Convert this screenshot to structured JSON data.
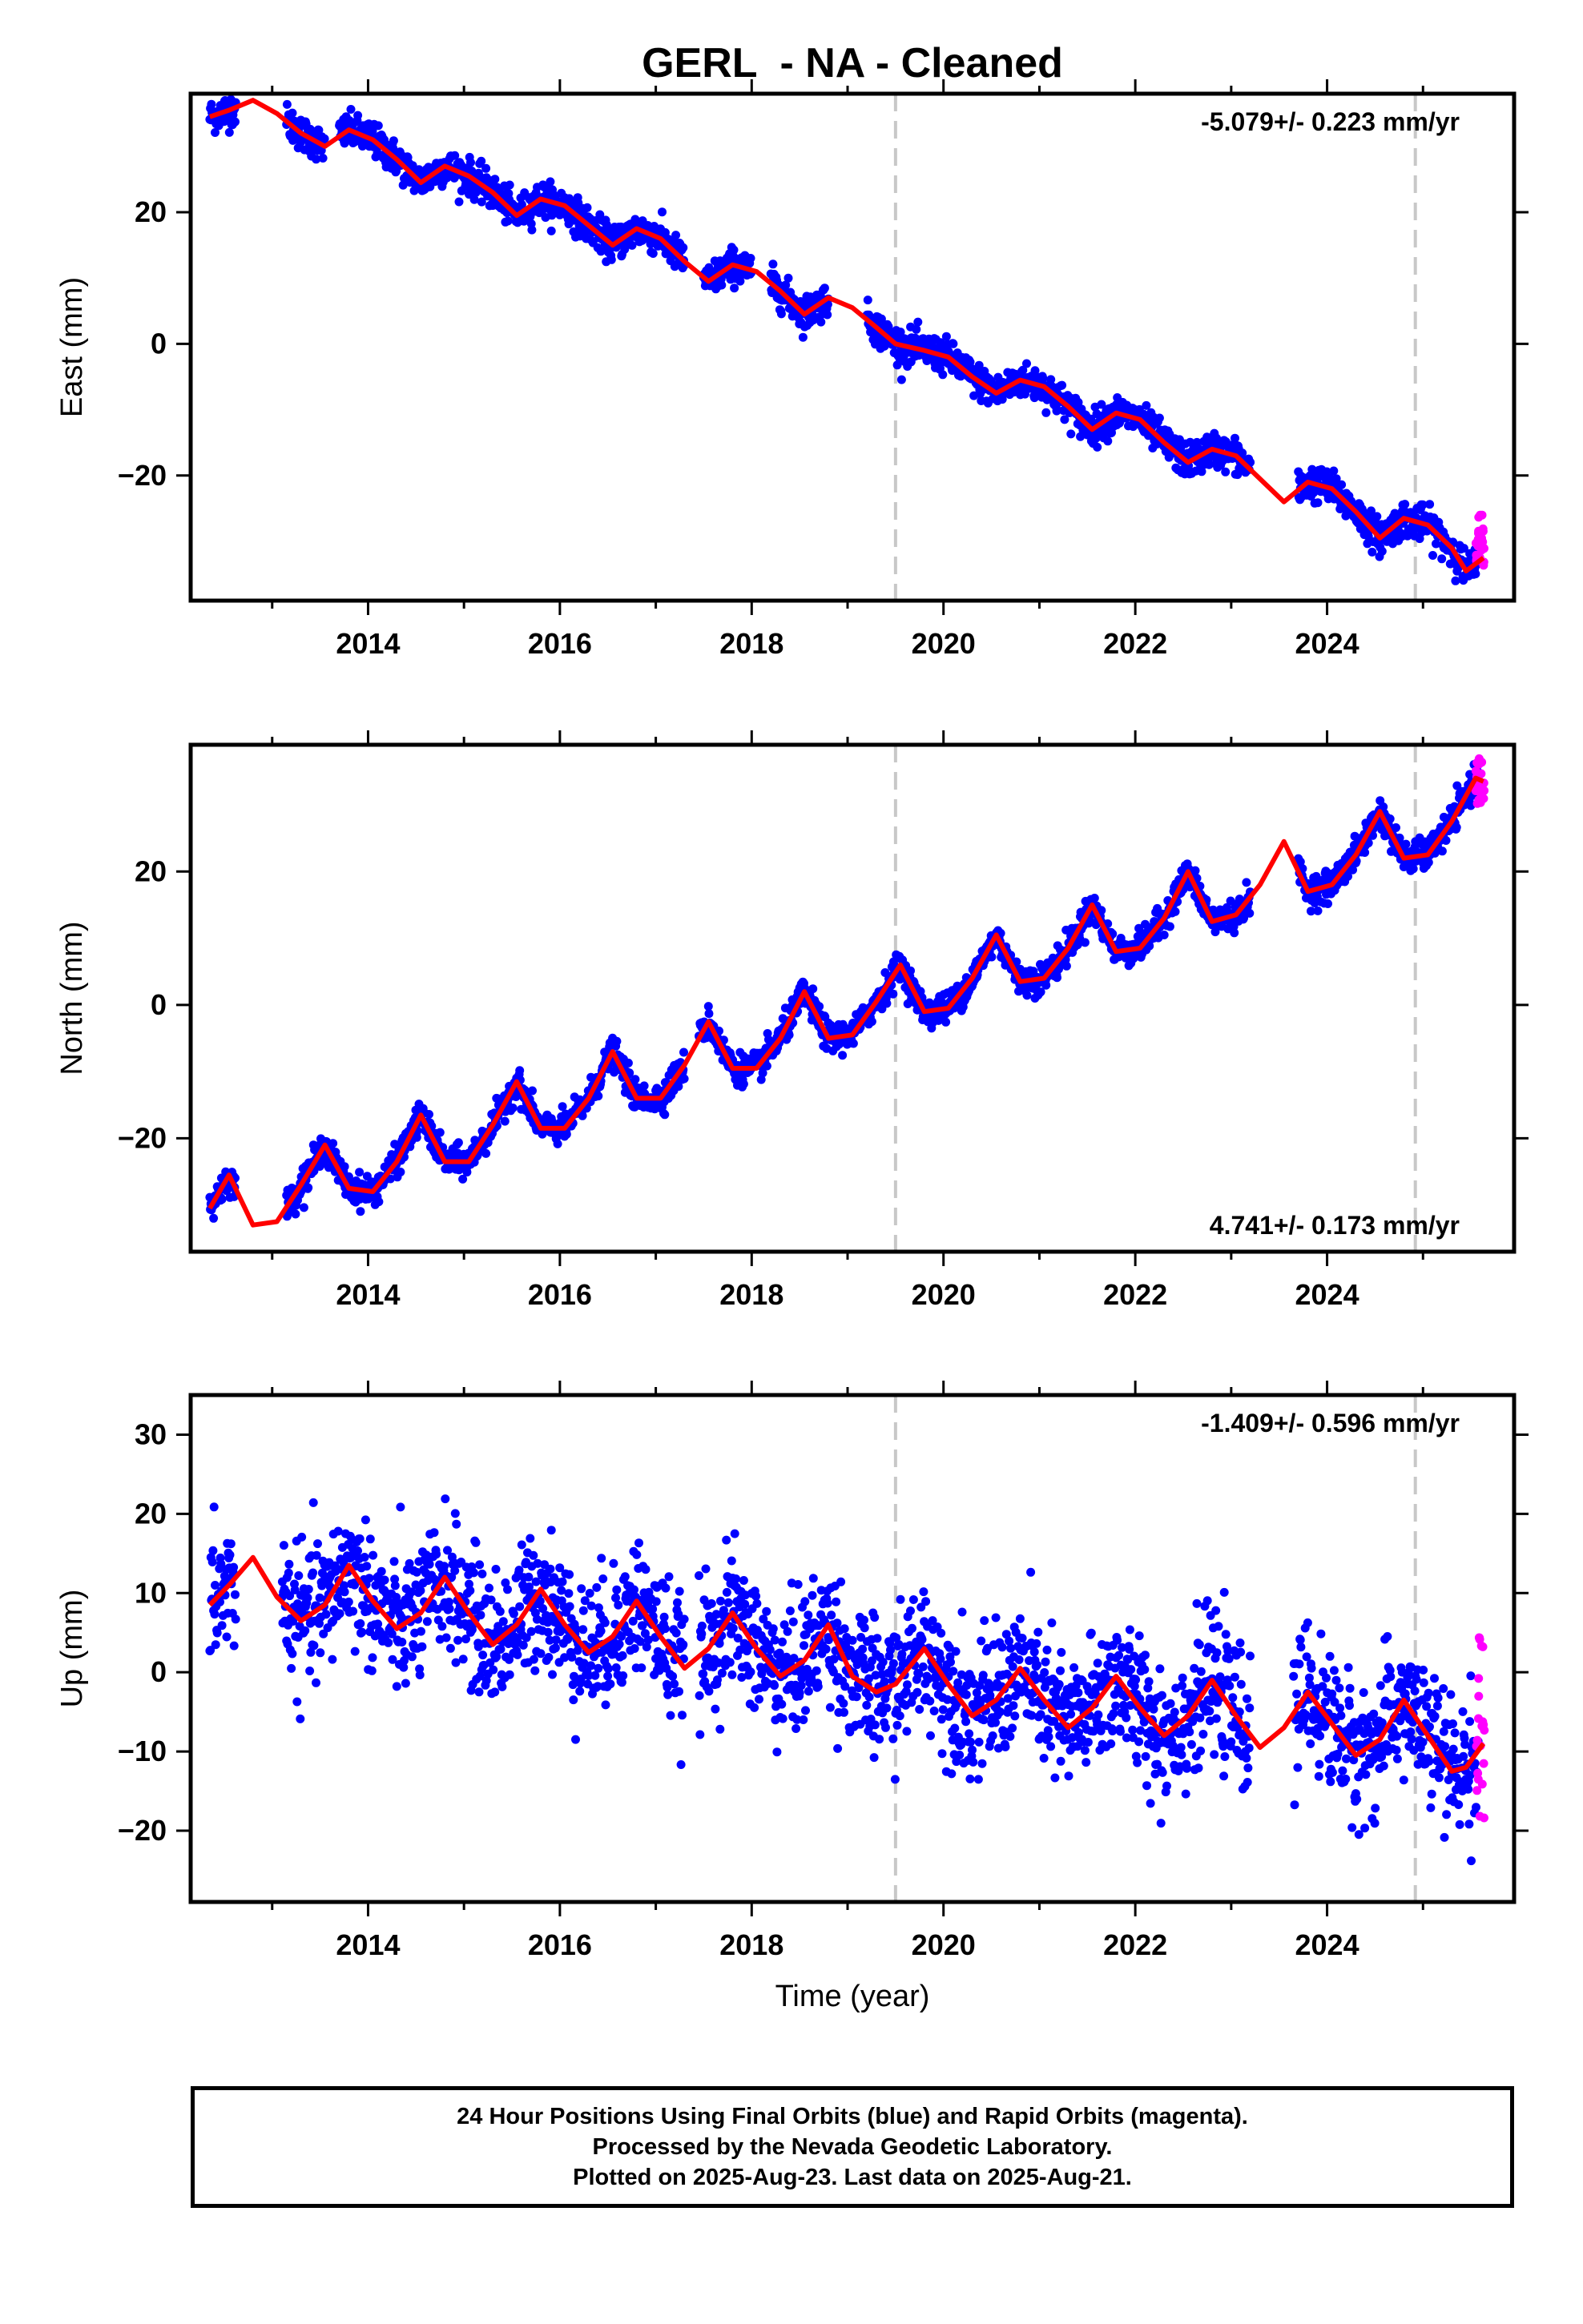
{
  "title": "GERL  - NA - Cleaned",
  "colors": {
    "final_orbits": "#0000ff",
    "rapid_orbits": "#ff00ff",
    "model": "#ff0000",
    "event_lines": "#c8c8c8",
    "frame": "#000000"
  },
  "chart_data": [
    {
      "type": "scatter",
      "panel": "east",
      "ylabel": "East (mm)",
      "xlabel": "",
      "xlim": [
        2012.15,
        2025.95
      ],
      "ylim": [
        -39,
        38
      ],
      "xticks": [
        "2014",
        "2016",
        "2018",
        "2020",
        "2022",
        "2024"
      ],
      "yticks": [
        "20",
        "0",
        "−20"
      ],
      "rate_label": "-5.079+/- 0.223 mm/yr",
      "rate_label_position": "top-right",
      "rate_mm_per_yr": -5.079,
      "rate_sigma": 0.223,
      "event_lines_x": [
        2019.5,
        2024.92
      ],
      "model_points": [
        [
          2012.35,
          34.5
        ],
        [
          2012.55,
          35.5
        ],
        [
          2012.8,
          37.0
        ],
        [
          2013.05,
          35.0
        ],
        [
          2013.3,
          32.0
        ],
        [
          2013.55,
          30.0
        ],
        [
          2013.8,
          32.5
        ],
        [
          2014.05,
          31.0
        ],
        [
          2014.3,
          28.0
        ],
        [
          2014.55,
          24.5
        ],
        [
          2014.8,
          27.0
        ],
        [
          2015.05,
          25.5
        ],
        [
          2015.3,
          23.0
        ],
        [
          2015.55,
          19.5
        ],
        [
          2015.8,
          22.0
        ],
        [
          2016.05,
          21.0
        ],
        [
          2016.3,
          18.0
        ],
        [
          2016.55,
          15.0
        ],
        [
          2016.8,
          17.5
        ],
        [
          2017.05,
          16.0
        ],
        [
          2017.3,
          12.5
        ],
        [
          2017.55,
          9.5
        ],
        [
          2017.8,
          12.0
        ],
        [
          2018.05,
          11.0
        ],
        [
          2018.3,
          8.0
        ],
        [
          2018.55,
          4.5
        ],
        [
          2018.8,
          7.0
        ],
        [
          2019.05,
          5.5
        ],
        [
          2019.3,
          2.5
        ],
        [
          2019.5,
          0.0
        ],
        [
          2019.8,
          -1.0
        ],
        [
          2020.05,
          -2.0
        ],
        [
          2020.3,
          -5.0
        ],
        [
          2020.55,
          -7.5
        ],
        [
          2020.8,
          -5.5
        ],
        [
          2021.05,
          -6.5
        ],
        [
          2021.3,
          -9.5
        ],
        [
          2021.55,
          -13.0
        ],
        [
          2021.8,
          -10.5
        ],
        [
          2022.05,
          -11.5
        ],
        [
          2022.3,
          -15.0
        ],
        [
          2022.55,
          -18.0
        ],
        [
          2022.8,
          -16.0
        ],
        [
          2023.05,
          -17.0
        ],
        [
          2023.3,
          -20.5
        ],
        [
          2023.55,
          -24.0
        ],
        [
          2023.8,
          -21.0
        ],
        [
          2024.05,
          -22.0
        ],
        [
          2024.3,
          -25.5
        ],
        [
          2024.55,
          -29.5
        ],
        [
          2024.8,
          -26.5
        ],
        [
          2025.05,
          -27.5
        ],
        [
          2025.3,
          -31.0
        ],
        [
          2025.45,
          -34.5
        ],
        [
          2025.63,
          -32.5
        ]
      ],
      "data_segments": [
        [
          2012.35,
          2012.62
        ],
        [
          2013.15,
          2013.55
        ],
        [
          2013.7,
          2017.3
        ],
        [
          2017.5,
          2018.0
        ],
        [
          2018.2,
          2018.8
        ],
        [
          2019.2,
          2023.2
        ],
        [
          2023.7,
          2025.58
        ]
      ],
      "scatter_sd": 1.3,
      "rapid_x_range": [
        2025.55,
        2025.64
      ],
      "rapid_y_range": [
        -34,
        -26
      ]
    },
    {
      "type": "scatter",
      "panel": "north",
      "ylabel": "North (mm)",
      "xlabel": "",
      "xlim": [
        2012.15,
        2025.95
      ],
      "ylim": [
        -37,
        39
      ],
      "xticks": [
        "2014",
        "2016",
        "2018",
        "2020",
        "2022",
        "2024"
      ],
      "yticks": [
        "20",
        "0",
        "−20"
      ],
      "rate_label": "4.741+/- 0.173 mm/yr",
      "rate_label_position": "bottom-right",
      "rate_mm_per_yr": 4.741,
      "rate_sigma": 0.173,
      "event_lines_x": [
        2019.5,
        2024.92
      ],
      "model_points": [
        [
          2012.35,
          -30.5
        ],
        [
          2012.55,
          -25.5
        ],
        [
          2012.8,
          -33.0
        ],
        [
          2013.05,
          -32.5
        ],
        [
          2013.3,
          -27.0
        ],
        [
          2013.55,
          -21.0
        ],
        [
          2013.8,
          -27.5
        ],
        [
          2014.05,
          -28.0
        ],
        [
          2014.3,
          -23.5
        ],
        [
          2014.55,
          -16.5
        ],
        [
          2014.8,
          -23.5
        ],
        [
          2015.05,
          -23.5
        ],
        [
          2015.3,
          -18.0
        ],
        [
          2015.55,
          -11.5
        ],
        [
          2015.8,
          -18.5
        ],
        [
          2016.05,
          -18.5
        ],
        [
          2016.3,
          -14.0
        ],
        [
          2016.55,
          -7.0
        ],
        [
          2016.8,
          -14.0
        ],
        [
          2017.05,
          -14.0
        ],
        [
          2017.3,
          -9.0
        ],
        [
          2017.55,
          -2.5
        ],
        [
          2017.8,
          -9.5
        ],
        [
          2018.05,
          -9.5
        ],
        [
          2018.3,
          -5.0
        ],
        [
          2018.55,
          2.0
        ],
        [
          2018.8,
          -5.0
        ],
        [
          2019.05,
          -4.5
        ],
        [
          2019.3,
          0.5
        ],
        [
          2019.55,
          6.0
        ],
        [
          2019.8,
          -1.0
        ],
        [
          2020.05,
          -0.5
        ],
        [
          2020.3,
          4.0
        ],
        [
          2020.55,
          10.5
        ],
        [
          2020.8,
          3.5
        ],
        [
          2021.05,
          4.0
        ],
        [
          2021.3,
          8.5
        ],
        [
          2021.55,
          15.0
        ],
        [
          2021.8,
          8.0
        ],
        [
          2022.05,
          8.5
        ],
        [
          2022.3,
          13.0
        ],
        [
          2022.55,
          20.0
        ],
        [
          2022.8,
          12.5
        ],
        [
          2023.05,
          13.5
        ],
        [
          2023.3,
          18.0
        ],
        [
          2023.55,
          24.5
        ],
        [
          2023.8,
          17.0
        ],
        [
          2024.05,
          18.0
        ],
        [
          2024.3,
          22.5
        ],
        [
          2024.55,
          29.0
        ],
        [
          2024.8,
          22.0
        ],
        [
          2025.05,
          22.5
        ],
        [
          2025.3,
          27.5
        ],
        [
          2025.55,
          34.0
        ],
        [
          2025.63,
          33.5
        ]
      ],
      "data_segments": [
        [
          2012.35,
          2012.62
        ],
        [
          2013.15,
          2017.3
        ],
        [
          2017.45,
          2023.2
        ],
        [
          2023.7,
          2025.58
        ]
      ],
      "scatter_sd": 1.1,
      "rapid_x_range": [
        2025.55,
        2025.64
      ],
      "rapid_y_range": [
        30,
        37
      ]
    },
    {
      "type": "scatter",
      "panel": "up",
      "ylabel": "Up (mm)",
      "xlabel": "Time (year)",
      "xlim": [
        2012.15,
        2025.95
      ],
      "ylim": [
        -29,
        35
      ],
      "xticks": [
        "2014",
        "2016",
        "2018",
        "2020",
        "2022",
        "2024"
      ],
      "yticks": [
        "30",
        "20",
        "10",
        "0",
        "−10",
        "−20"
      ],
      "rate_label": "-1.409+/- 0.596 mm/yr",
      "rate_label_position": "top-right",
      "rate_mm_per_yr": -1.409,
      "rate_sigma": 0.596,
      "event_lines_x": [
        2019.5,
        2024.92
      ],
      "model_points": [
        [
          2012.35,
          8.5
        ],
        [
          2012.55,
          11.0
        ],
        [
          2012.8,
          14.5
        ],
        [
          2013.05,
          9.5
        ],
        [
          2013.3,
          6.5
        ],
        [
          2013.55,
          8.5
        ],
        [
          2013.8,
          13.5
        ],
        [
          2014.05,
          9.0
        ],
        [
          2014.3,
          5.5
        ],
        [
          2014.55,
          7.5
        ],
        [
          2014.8,
          12.0
        ],
        [
          2015.05,
          7.5
        ],
        [
          2015.3,
          3.5
        ],
        [
          2015.55,
          6.0
        ],
        [
          2015.8,
          10.5
        ],
        [
          2016.05,
          6.0
        ],
        [
          2016.3,
          2.5
        ],
        [
          2016.55,
          4.5
        ],
        [
          2016.8,
          9.0
        ],
        [
          2017.05,
          4.5
        ],
        [
          2017.3,
          0.5
        ],
        [
          2017.55,
          3.0
        ],
        [
          2017.8,
          7.5
        ],
        [
          2018.05,
          3.0
        ],
        [
          2018.3,
          -0.5
        ],
        [
          2018.55,
          1.5
        ],
        [
          2018.8,
          6.0
        ],
        [
          2019.05,
          -0.5
        ],
        [
          2019.3,
          -2.5
        ],
        [
          2019.5,
          -1.5
        ],
        [
          2019.8,
          3.0
        ],
        [
          2020.05,
          -1.5
        ],
        [
          2020.3,
          -5.5
        ],
        [
          2020.55,
          -3.5
        ],
        [
          2020.8,
          0.5
        ],
        [
          2021.05,
          -3.5
        ],
        [
          2021.3,
          -7.0
        ],
        [
          2021.55,
          -4.5
        ],
        [
          2021.8,
          -0.5
        ],
        [
          2022.05,
          -4.5
        ],
        [
          2022.3,
          -8.0
        ],
        [
          2022.55,
          -5.5
        ],
        [
          2022.8,
          -1.0
        ],
        [
          2023.05,
          -5.5
        ],
        [
          2023.3,
          -9.5
        ],
        [
          2023.55,
          -7.0
        ],
        [
          2023.8,
          -2.5
        ],
        [
          2024.05,
          -6.5
        ],
        [
          2024.3,
          -10.5
        ],
        [
          2024.55,
          -8.5
        ],
        [
          2024.8,
          -3.5
        ],
        [
          2025.05,
          -8.0
        ],
        [
          2025.3,
          -12.5
        ],
        [
          2025.45,
          -12.0
        ],
        [
          2025.63,
          -9.0
        ]
      ],
      "data_segments": [
        [
          2012.35,
          2012.62
        ],
        [
          2013.1,
          2017.3
        ],
        [
          2017.45,
          2023.2
        ],
        [
          2023.65,
          2025.58
        ]
      ],
      "scatter_sd": 4.2,
      "rapid_x_range": [
        2025.55,
        2025.64
      ],
      "rapid_y_range": [
        -19,
        6
      ]
    }
  ],
  "footer": {
    "line1": "24 Hour Positions Using Final Orbits (blue) and Rapid Orbits (magenta).",
    "line2": "Processed by the Nevada Geodetic Laboratory.",
    "line3": "Plotted on 2025-Aug-23. Last data on 2025-Aug-21."
  }
}
